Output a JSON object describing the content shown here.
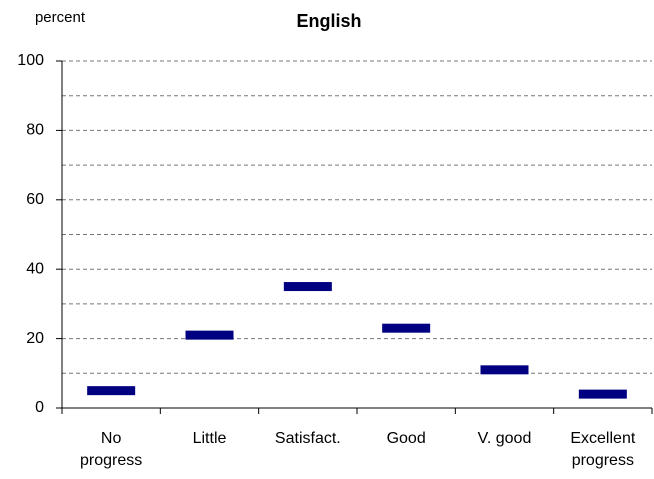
{
  "chart_data": {
    "type": "marker",
    "title": "English",
    "y_label": "percent",
    "categories": [
      "No progress",
      "Little",
      "Satisfact.",
      "Good",
      "V. good",
      "Excellent progress"
    ],
    "values": [
      5,
      21,
      35,
      23,
      11,
      4
    ],
    "color": "#000080",
    "ylim": [
      0,
      100
    ],
    "yticks": [
      0,
      20,
      40,
      60,
      80,
      100
    ],
    "minor_yticks": [
      10,
      30,
      50,
      70,
      90
    ],
    "grid": true
  }
}
